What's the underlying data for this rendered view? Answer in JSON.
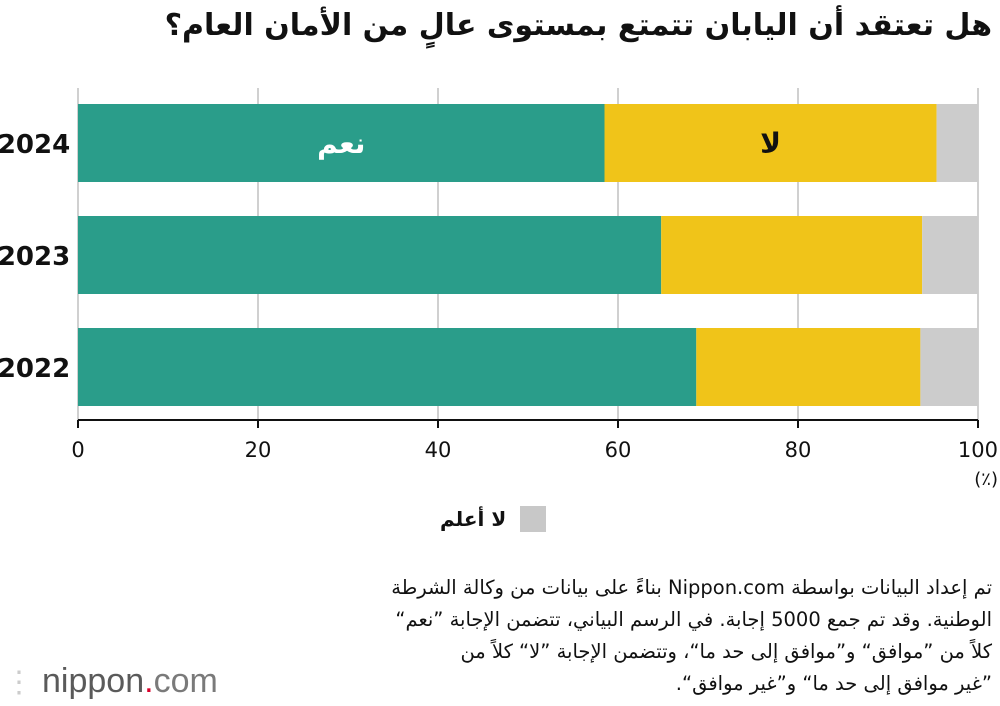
{
  "title": "هل تعتقد أن اليابان تتمتع بمستوى عالٍ من الأمان العام؟",
  "chart_data": {
    "type": "bar",
    "orientation": "horizontal",
    "stacked": true,
    "categories": [
      "2024",
      "2023",
      "2022"
    ],
    "series": [
      {
        "name": "نعم",
        "values": [
          58.5,
          64.8,
          68.7
        ],
        "color": "#2a9d8a"
      },
      {
        "name": "لا",
        "values": [
          36.9,
          29.0,
          24.9
        ],
        "color": "#f0c419"
      },
      {
        "name": "لا أعلم",
        "values": [
          4.6,
          6.2,
          6.4
        ],
        "color": "#cccccc"
      }
    ],
    "in_bar_labels": {
      "yes": "نعم",
      "no": "لا"
    },
    "x_ticks": [
      "0",
      "20",
      "40",
      "60",
      "80",
      "100"
    ],
    "xlim": [
      0,
      100
    ],
    "x_unit": "(٪)",
    "grid": true,
    "legend": {
      "position": "bottom-center",
      "entries": [
        "لا أعلم"
      ]
    }
  },
  "legend_label": "لا أعلم",
  "note": "تم إعداد البيانات بواسطة Nippon.com بناءً على بيانات من وكالة الشرطة\nالوطنية. وقد تم جمع 5000 إجابة. في الرسم البياني، تتضمن الإجابة ”نعم“\nكلاً من ”موافق“ و”موافق إلى حد ما“، وتتضمن الإجابة ”لا“ كلاً من\n”غير موافق إلى حد ما“ و”غير موافق“.",
  "brand": {
    "name": "nippon",
    "dot": ".",
    "suffix": "com"
  }
}
